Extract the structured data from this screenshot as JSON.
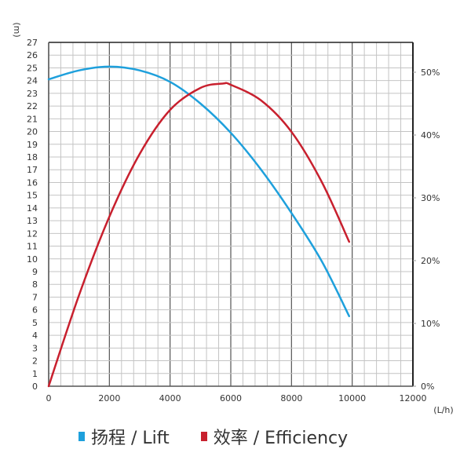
{
  "chart_data": {
    "type": "line",
    "title": "",
    "xlabel": "(L/h)",
    "ylabel": "(m)",
    "y2label": "",
    "xlim": [
      0,
      12000
    ],
    "ylim": [
      0,
      27
    ],
    "y2lim": [
      0,
      55
    ],
    "grid": true,
    "legend_position": "bottom",
    "x_ticks": [
      0,
      2000,
      4000,
      6000,
      8000,
      10000,
      12000
    ],
    "y_ticks": [
      0,
      1,
      2,
      3,
      4,
      5,
      6,
      7,
      8,
      9,
      10,
      11,
      12,
      13,
      14,
      15,
      16,
      17,
      18,
      19,
      20,
      21,
      22,
      23,
      24,
      25,
      26,
      27
    ],
    "y2_ticks": [
      "0%",
      "10%",
      "20%",
      "30%",
      "40%",
      "50%"
    ],
    "series": [
      {
        "name": "扬程 / Lift",
        "axis": "left",
        "unit": "m",
        "color": "#1ea0dc",
        "x": [
          0,
          1000,
          2000,
          3000,
          4000,
          5000,
          6000,
          7000,
          8000,
          9000,
          9900
        ],
        "values": [
          24.1,
          24.8,
          25.1,
          24.8,
          23.9,
          22.2,
          19.9,
          17.0,
          13.6,
          9.8,
          5.5
        ]
      },
      {
        "name": "效率 / Efficiency",
        "axis": "right",
        "unit": "%",
        "color": "#c8202e",
        "x": [
          0,
          1000,
          2000,
          3000,
          4000,
          5000,
          5750,
          6000,
          7000,
          8000,
          9000,
          9900
        ],
        "values": [
          0,
          14.5,
          27,
          37,
          44,
          47.5,
          48.2,
          48,
          45.5,
          40.5,
          32.5,
          23
        ]
      }
    ]
  },
  "legend": {
    "lift_label": "扬程 / Lift",
    "efficiency_label": "效率 / Efficiency",
    "lift_color": "#1ea0dc",
    "efficiency_color": "#c8202e"
  }
}
